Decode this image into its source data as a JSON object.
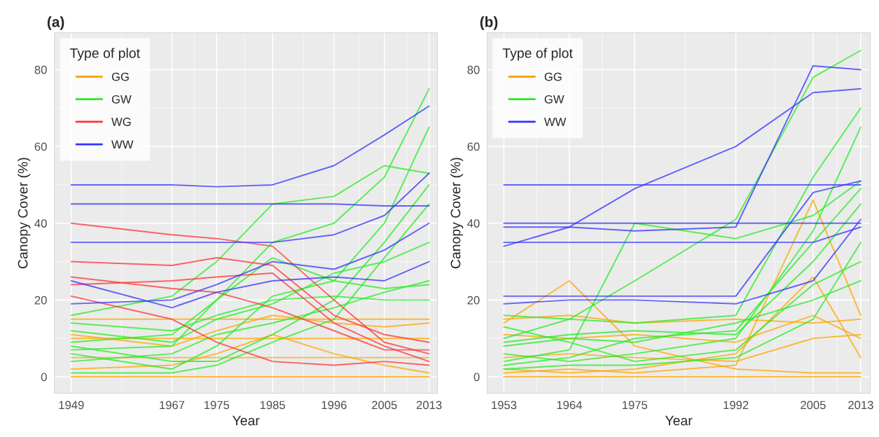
{
  "chart_data": [
    {
      "type": "line",
      "title": "(a)",
      "xlabel": "Year",
      "ylabel": "Canopy Cover (%)",
      "legend_title": "Type of plot",
      "legend": "top left",
      "grid": true,
      "x": [
        1949,
        1967,
        1975,
        1985,
        1996,
        2005,
        2013
      ],
      "xlim": [
        1946,
        2014.5
      ],
      "xticks": [
        1949,
        1967,
        1975,
        1985,
        1996,
        2005,
        2013
      ],
      "ylim": [
        -4.3,
        89.6
      ],
      "yticks": [
        0,
        20,
        40,
        60,
        80
      ],
      "series": [
        {
          "name": "GG",
          "color": "#ffa500",
          "values": [
            0,
            0,
            0,
            0,
            0,
            0,
            0
          ]
        },
        {
          "color": "#ffa500",
          "values": [
            10,
            10,
            10,
            10,
            10,
            10,
            10
          ]
        },
        {
          "color": "#ffa500",
          "values": [
            15,
            15,
            15,
            15,
            15,
            15,
            15
          ]
        },
        {
          "color": "#ffa500",
          "values": [
            5,
            5,
            5,
            5,
            5,
            5,
            5
          ]
        },
        {
          "color": "#ffa500",
          "values": [
            2,
            3,
            6,
            11,
            6,
            3,
            1
          ]
        },
        {
          "color": "#ffa500",
          "values": [
            11,
            8,
            12,
            16,
            14,
            13,
            14
          ]
        },
        {
          "name": "GW",
          "color": "#22ee22",
          "values": [
            16,
            21,
            30,
            45,
            47,
            55,
            53
          ]
        },
        {
          "color": "#22ee22",
          "values": [
            9,
            11,
            20,
            35,
            40,
            52,
            75
          ]
        },
        {
          "color": "#22ee22",
          "values": [
            6,
            2,
            8,
            21,
            25,
            40,
            65
          ]
        },
        {
          "color": "#22ee22",
          "values": [
            12,
            9,
            15,
            19,
            27,
            30,
            35
          ]
        },
        {
          "color": "#22ee22",
          "values": [
            4,
            6,
            11,
            14,
            18,
            22,
            25
          ]
        },
        {
          "color": "#22ee22",
          "values": [
            14,
            12,
            16,
            20,
            21,
            20,
            20
          ]
        },
        {
          "color": "#22ee22",
          "values": [
            1,
            1,
            3,
            9,
            15,
            31,
            45
          ]
        },
        {
          "color": "#22ee22",
          "values": [
            8,
            4,
            4,
            11,
            20,
            35,
            50
          ]
        },
        {
          "color": "#22ee22",
          "values": [
            7,
            8,
            20,
            31,
            25,
            23,
            24
          ]
        },
        {
          "name": "WG",
          "color": "#ff3333",
          "values": [
            40,
            37,
            36,
            34,
            20,
            9,
            6
          ]
        },
        {
          "color": "#ff3333",
          "values": [
            30,
            29,
            31,
            29,
            16,
            11,
            9
          ]
        },
        {
          "color": "#ff3333",
          "values": [
            24,
            25,
            26,
            27,
            14,
            8,
            4
          ]
        },
        {
          "color": "#ff3333",
          "values": [
            21,
            15,
            9,
            4,
            3,
            4,
            3
          ]
        },
        {
          "color": "#ff3333",
          "values": [
            26,
            23,
            22,
            18,
            12,
            7,
            7
          ]
        },
        {
          "name": "WW",
          "color": "#3333ff",
          "values": [
            50,
            50,
            49.5,
            50,
            55,
            63,
            70.5
          ]
        },
        {
          "color": "#3333ff",
          "values": [
            45,
            45,
            45,
            45,
            45,
            44.5,
            44.5
          ]
        },
        {
          "color": "#3333ff",
          "values": [
            35,
            35,
            35,
            35,
            37,
            42,
            53
          ]
        },
        {
          "color": "#3333ff",
          "values": [
            19,
            20,
            24,
            30,
            28,
            33,
            40
          ]
        },
        {
          "color": "#3333ff",
          "values": [
            25,
            18,
            22,
            25,
            26,
            25,
            30
          ]
        }
      ]
    },
    {
      "type": "line",
      "title": "(b)",
      "xlabel": "Year",
      "ylabel": "Canopy Cover (%)",
      "legend_title": "Type of plot",
      "legend": "top left",
      "grid": true,
      "x": [
        1953,
        1964,
        1975,
        1992,
        2005,
        2013
      ],
      "xlim": [
        1950.2,
        2014.6
      ],
      "xticks": [
        1953,
        1964,
        1975,
        1992,
        2005,
        2013
      ],
      "ylim": [
        -4.3,
        89.6
      ],
      "yticks": [
        0,
        20,
        40,
        60,
        80
      ],
      "series": [
        {
          "name": "GG",
          "color": "#ffa500",
          "values": [
            14,
            25,
            8,
            2,
            1,
            1
          ]
        },
        {
          "color": "#ffa500",
          "values": [
            0,
            0,
            0,
            0,
            0,
            0
          ]
        },
        {
          "color": "#ffa500",
          "values": [
            5,
            6,
            5,
            4,
            10,
            11
          ]
        },
        {
          "color": "#ffa500",
          "values": [
            11,
            10,
            11,
            9,
            16,
            10
          ]
        },
        {
          "color": "#ffa500",
          "values": [
            1,
            2,
            1,
            3,
            46,
            16
          ]
        },
        {
          "color": "#ffa500",
          "values": [
            2,
            1,
            2,
            6,
            26,
            5
          ]
        },
        {
          "color": "#ffa500",
          "values": [
            15,
            16,
            14,
            15,
            14,
            15
          ]
        },
        {
          "name": "GW",
          "color": "#22ee22",
          "values": [
            10,
            15,
            25,
            41,
            78,
            85
          ]
        },
        {
          "color": "#22ee22",
          "values": [
            16,
            15,
            14,
            16,
            52,
            70
          ]
        },
        {
          "color": "#22ee22",
          "values": [
            6,
            4,
            6,
            10,
            38,
            65
          ]
        },
        {
          "color": "#22ee22",
          "values": [
            3,
            5,
            10,
            12,
            35,
            49
          ]
        },
        {
          "color": "#22ee22",
          "values": [
            9,
            11,
            12,
            11,
            30,
            45
          ]
        },
        {
          "color": "#22ee22",
          "values": [
            4,
            7,
            40,
            36,
            42,
            51
          ]
        },
        {
          "color": "#22ee22",
          "values": [
            13,
            9,
            4,
            7,
            24,
            30
          ]
        },
        {
          "color": "#22ee22",
          "values": [
            8,
            10,
            9,
            14,
            20,
            25
          ]
        },
        {
          "color": "#22ee22",
          "values": [
            2,
            3,
            3,
            5,
            15,
            35
          ]
        },
        {
          "name": "WW",
          "color": "#3333ff",
          "values": [
            34,
            39,
            49,
            60,
            74,
            75
          ]
        },
        {
          "color": "#3333ff",
          "values": [
            39,
            39,
            38,
            39,
            81,
            80
          ]
        },
        {
          "color": "#3333ff",
          "values": [
            50,
            50,
            50,
            50,
            50,
            50
          ]
        },
        {
          "color": "#3333ff",
          "values": [
            40,
            40,
            40,
            40,
            40,
            40
          ]
        },
        {
          "color": "#3333ff",
          "values": [
            35,
            35,
            35,
            35,
            35,
            39
          ]
        },
        {
          "color": "#3333ff",
          "values": [
            19,
            20,
            20,
            19,
            25,
            41
          ]
        },
        {
          "color": "#3333ff",
          "values": [
            21,
            21,
            21,
            21,
            48,
            51
          ]
        }
      ]
    }
  ]
}
